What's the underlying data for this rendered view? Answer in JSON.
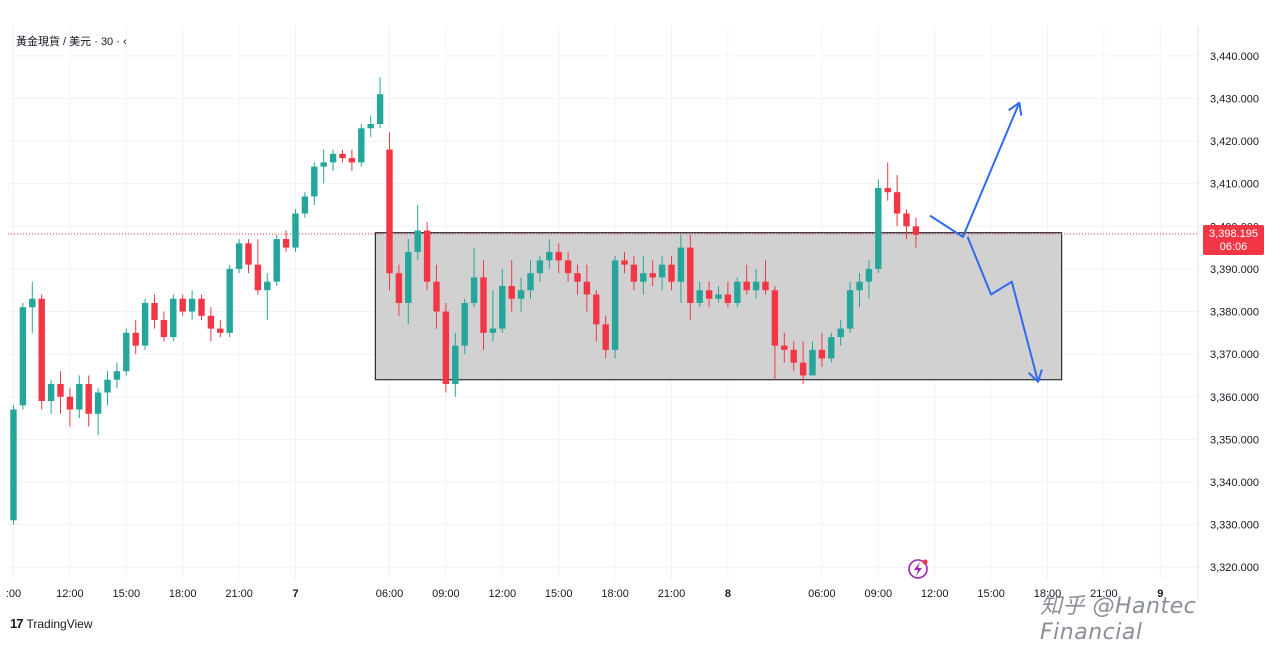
{
  "header": {
    "symbol_title": "黃金現貨 / 美元 · 30 · ‹"
  },
  "branding": {
    "logo_mark": "17",
    "logo_text": "TradingView",
    "watermark": "知乎 @Hantec Financial"
  },
  "price_badge": {
    "price": "3,398.195",
    "countdown": "06:06"
  },
  "colors": {
    "up": "#26a69a",
    "down": "#f23645",
    "grid": "#f0f3fa",
    "box_fill": "#d1d1d1",
    "arrow": "#2f6bef",
    "badge": "#f23645"
  },
  "chart_data": {
    "type": "candlestick",
    "title": "黃金現貨 / 美元 · 30",
    "interval_minutes": 30,
    "ylim": [
      3317,
      3447
    ],
    "y_ticks": [
      3440,
      3430,
      3420,
      3410,
      3400,
      3390,
      3380,
      3370,
      3360,
      3350,
      3340,
      3330,
      3320
    ],
    "y_tick_labels": [
      "3,440.000",
      "3,430.000",
      "3,420.000",
      "3,410.000",
      "3,400.000",
      "3,390.000",
      "3,380.000",
      "3,370.000",
      "3,360.000",
      "3,350.000",
      "3,340.000",
      "3,330.000",
      "3,320.000"
    ],
    "x_ticks": [
      {
        "label": ":00",
        "index": 0
      },
      {
        "label": "12:00",
        "index": 6
      },
      {
        "label": "15:00",
        "index": 12
      },
      {
        "label": "18:00",
        "index": 18
      },
      {
        "label": "21:00",
        "index": 24
      },
      {
        "label": "7",
        "index": 30
      },
      {
        "label": "06:00",
        "index": 40
      },
      {
        "label": "09:00",
        "index": 46
      },
      {
        "label": "12:00",
        "index": 52
      },
      {
        "label": "15:00",
        "index": 58
      },
      {
        "label": "18:00",
        "index": 64
      },
      {
        "label": "21:00",
        "index": 70
      },
      {
        "label": "8",
        "index": 76
      },
      {
        "label": "06:00",
        "index": 86
      },
      {
        "label": "09:00",
        "index": 92
      },
      {
        "label": "12:00",
        "index": 98
      },
      {
        "label": "15:00",
        "index": 104
      },
      {
        "label": "18:00",
        "index": 110
      },
      {
        "label": "21:00",
        "index": 116
      },
      {
        "label": "9",
        "index": 122
      }
    ],
    "current_price": 3398.195,
    "range_box": {
      "start_index": 38.5,
      "end_index": 111.5,
      "high": 3398.5,
      "low": 3364
    },
    "projection_up": [
      {
        "i": 97.5,
        "p": 3402.5
      },
      {
        "i": 101,
        "p": 3397.5
      },
      {
        "i": 107,
        "p": 3429
      }
    ],
    "projection_down": [
      {
        "i": 101.5,
        "p": 3397.5
      },
      {
        "i": 104,
        "p": 3384
      },
      {
        "i": 106.2,
        "p": 3387
      },
      {
        "i": 109,
        "p": 3363.5
      }
    ],
    "candles": [
      [
        3331,
        3358,
        3330,
        3357
      ],
      [
        3358,
        3382,
        3357,
        3381
      ],
      [
        3381,
        3387,
        3375,
        3383
      ],
      [
        3383,
        3384,
        3357,
        3359
      ],
      [
        3359,
        3364,
        3356,
        3363
      ],
      [
        3363,
        3366,
        3356,
        3360
      ],
      [
        3360,
        3362,
        3353,
        3357
      ],
      [
        3357,
        3365,
        3355,
        3363
      ],
      [
        3363,
        3365,
        3353,
        3356
      ],
      [
        3356,
        3362,
        3351,
        3361
      ],
      [
        3361,
        3366,
        3358,
        3364
      ],
      [
        3364,
        3368,
        3362,
        3366
      ],
      [
        3366,
        3376,
        3365,
        3375
      ],
      [
        3375,
        3378,
        3370,
        3372
      ],
      [
        3372,
        3383,
        3371,
        3382
      ],
      [
        3382,
        3384,
        3376,
        3378
      ],
      [
        3378,
        3380,
        3373,
        3374
      ],
      [
        3374,
        3384,
        3373,
        3383
      ],
      [
        3383,
        3384,
        3379,
        3380
      ],
      [
        3380,
        3385,
        3378,
        3383
      ],
      [
        3383,
        3384,
        3378,
        3379
      ],
      [
        3379,
        3381,
        3373,
        3376
      ],
      [
        3376,
        3378,
        3374,
        3375
      ],
      [
        3375,
        3391,
        3374,
        3390
      ],
      [
        3390,
        3397,
        3389,
        3396
      ],
      [
        3396,
        3397,
        3389,
        3391
      ],
      [
        3391,
        3397,
        3384,
        3385
      ],
      [
        3385,
        3389,
        3378,
        3387
      ],
      [
        3387,
        3398,
        3386,
        3397
      ],
      [
        3397,
        3399,
        3394,
        3395
      ],
      [
        3395,
        3404,
        3394,
        3403
      ],
      [
        3403,
        3408,
        3402,
        3407
      ],
      [
        3407,
        3415,
        3405,
        3414
      ],
      [
        3414,
        3418,
        3410,
        3415
      ],
      [
        3415,
        3418,
        3413,
        3417
      ],
      [
        3417,
        3418,
        3415,
        3416
      ],
      [
        3416,
        3418,
        3413,
        3415
      ],
      [
        3415,
        3424,
        3414,
        3423
      ],
      [
        3423,
        3426,
        3421,
        3424
      ],
      [
        3424,
        3435,
        3423,
        3431
      ],
      [
        3418,
        3422,
        3385,
        3389
      ],
      [
        3389,
        3391,
        3379,
        3382
      ],
      [
        3382,
        3397,
        3377,
        3394
      ],
      [
        3394,
        3405,
        3392,
        3399
      ],
      [
        3399,
        3401,
        3385,
        3387
      ],
      [
        3387,
        3391,
        3376,
        3380
      ],
      [
        3380,
        3382,
        3361,
        3363
      ],
      [
        3363,
        3375,
        3360,
        3372
      ],
      [
        3372,
        3383,
        3370,
        3382
      ],
      [
        3382,
        3395,
        3381,
        3388
      ],
      [
        3388,
        3392,
        3371,
        3375
      ],
      [
        3375,
        3385,
        3373,
        3376
      ],
      [
        3376,
        3390,
        3375,
        3386
      ],
      [
        3386,
        3392,
        3380,
        3383
      ],
      [
        3383,
        3388,
        3380,
        3385
      ],
      [
        3385,
        3392,
        3383,
        3389
      ],
      [
        3389,
        3393,
        3387,
        3392
      ],
      [
        3392,
        3397,
        3390,
        3394
      ],
      [
        3394,
        3396,
        3389,
        3392
      ],
      [
        3392,
        3394,
        3387,
        3389
      ],
      [
        3389,
        3391,
        3384,
        3387
      ],
      [
        3387,
        3391,
        3380,
        3384
      ],
      [
        3384,
        3385,
        3373,
        3377
      ],
      [
        3377,
        3379,
        3369,
        3371
      ],
      [
        3371,
        3393,
        3369,
        3392
      ],
      [
        3392,
        3394,
        3389,
        3391
      ],
      [
        3391,
        3393,
        3385,
        3387
      ],
      [
        3387,
        3393,
        3384,
        3389
      ],
      [
        3389,
        3392,
        3386,
        3388
      ],
      [
        3388,
        3393,
        3385,
        3391
      ],
      [
        3391,
        3393,
        3385,
        3387
      ],
      [
        3387,
        3398,
        3382,
        3395
      ],
      [
        3395,
        3398,
        3378,
        3382
      ],
      [
        3382,
        3387,
        3381,
        3385
      ],
      [
        3385,
        3387,
        3381,
        3383
      ],
      [
        3383,
        3386,
        3382,
        3384
      ],
      [
        3384,
        3387,
        3381,
        3382
      ],
      [
        3382,
        3388,
        3381,
        3387
      ],
      [
        3387,
        3391,
        3384,
        3385
      ],
      [
        3385,
        3390,
        3383,
        3387
      ],
      [
        3387,
        3392,
        3384,
        3385
      ],
      [
        3385,
        3386,
        3364,
        3372
      ],
      [
        3372,
        3375,
        3368,
        3371
      ],
      [
        3371,
        3373,
        3366,
        3368
      ],
      [
        3368,
        3373,
        3363,
        3365
      ],
      [
        3365,
        3373,
        3366,
        3371
      ],
      [
        3371,
        3375,
        3367,
        3369
      ],
      [
        3369,
        3375,
        3368,
        3374
      ],
      [
        3374,
        3378,
        3372,
        3376
      ],
      [
        3376,
        3387,
        3375,
        3385
      ],
      [
        3385,
        3389,
        3381,
        3387
      ],
      [
        3387,
        3392,
        3383,
        3390
      ],
      [
        3390,
        3411,
        3389,
        3409
      ],
      [
        3409,
        3415,
        3406,
        3408
      ],
      [
        3408,
        3412,
        3400,
        3403
      ],
      [
        3403,
        3404,
        3397,
        3400
      ],
      [
        3400,
        3402,
        3395,
        3398
      ]
    ]
  }
}
